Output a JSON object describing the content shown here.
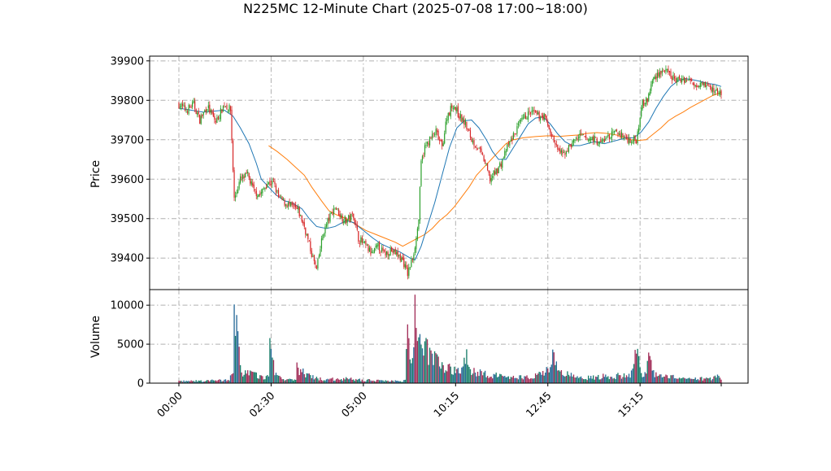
{
  "chart_data": {
    "type": "candlestick",
    "title": "N225MC 12-Minute Chart (2025-07-08 17:00~18:00)",
    "price_panel": {
      "ylabel": "Price",
      "yticks": [
        39400,
        39500,
        39600,
        39700,
        39800,
        39900
      ],
      "ylim": [
        39320,
        39912
      ],
      "grid": true
    },
    "volume_panel": {
      "ylabel": "Volume",
      "yticks": [
        0,
        5000,
        10000
      ],
      "ylim": [
        0,
        12000
      ],
      "grid": true
    },
    "xticks": [
      "00:00",
      "02:30",
      "05:00",
      "10:15",
      "12:45",
      "15:15"
    ],
    "colors": {
      "up": "#2ca02c",
      "down": "#d62728",
      "ma_short": "#1f77b4",
      "ma_long": "#ff7f0e",
      "vol_up": "#1a7f6b",
      "vol_down": "#a3305a",
      "vol_neutral": "#2b6d9a"
    },
    "close_path": [
      [
        0,
        39790
      ],
      [
        6,
        39775
      ],
      [
        12,
        39790
      ],
      [
        17,
        39750
      ],
      [
        23,
        39785
      ],
      [
        30,
        39745
      ],
      [
        37,
        39790
      ],
      [
        42,
        39775
      ],
      [
        45,
        39550
      ],
      [
        50,
        39600
      ],
      [
        56,
        39610
      ],
      [
        61,
        39570
      ],
      [
        66,
        39560
      ],
      [
        72,
        39590
      ],
      [
        77,
        39590
      ],
      [
        81,
        39555
      ],
      [
        86,
        39540
      ],
      [
        92,
        39530
      ],
      [
        97,
        39520
      ],
      [
        102,
        39480
      ],
      [
        108,
        39410
      ],
      [
        112,
        39370
      ],
      [
        117,
        39460
      ],
      [
        122,
        39500
      ],
      [
        127,
        39530
      ],
      [
        132,
        39505
      ],
      [
        136,
        39495
      ],
      [
        142,
        39510
      ],
      [
        146,
        39450
      ],
      [
        152,
        39430
      ],
      [
        157,
        39410
      ],
      [
        162,
        39430
      ],
      [
        167,
        39410
      ],
      [
        172,
        39420
      ],
      [
        177,
        39410
      ],
      [
        182,
        39395
      ],
      [
        186,
        39360
      ],
      [
        190,
        39400
      ],
      [
        193,
        39450
      ],
      [
        195,
        39500
      ],
      [
        197,
        39640
      ],
      [
        200,
        39680
      ],
      [
        204,
        39700
      ],
      [
        209,
        39720
      ],
      [
        214,
        39680
      ],
      [
        218,
        39760
      ],
      [
        223,
        39790
      ],
      [
        228,
        39760
      ],
      [
        233,
        39740
      ],
      [
        238,
        39700
      ],
      [
        243,
        39680
      ],
      [
        248,
        39650
      ],
      [
        253,
        39600
      ],
      [
        258,
        39620
      ],
      [
        262,
        39640
      ],
      [
        267,
        39680
      ],
      [
        272,
        39710
      ],
      [
        277,
        39740
      ],
      [
        282,
        39760
      ],
      [
        287,
        39770
      ],
      [
        292,
        39760
      ],
      [
        297,
        39760
      ],
      [
        302,
        39720
      ],
      [
        307,
        39680
      ],
      [
        312,
        39660
      ],
      [
        317,
        39680
      ],
      [
        322,
        39700
      ],
      [
        327,
        39710
      ],
      [
        332,
        39700
      ],
      [
        337,
        39705
      ],
      [
        342,
        39690
      ],
      [
        346,
        39700
      ],
      [
        351,
        39710
      ],
      [
        356,
        39720
      ],
      [
        361,
        39710
      ],
      [
        366,
        39700
      ],
      [
        372,
        39700
      ],
      [
        374,
        39740
      ],
      [
        376,
        39790
      ],
      [
        381,
        39800
      ],
      [
        385,
        39850
      ],
      [
        390,
        39870
      ],
      [
        395,
        39875
      ],
      [
        400,
        39860
      ],
      [
        405,
        39850
      ],
      [
        410,
        39855
      ],
      [
        415,
        39850
      ],
      [
        420,
        39840
      ],
      [
        425,
        39850
      ],
      [
        430,
        39835
      ],
      [
        435,
        39825
      ],
      [
        441,
        39820
      ]
    ],
    "ma_short_path": [
      [
        0,
        39780
      ],
      [
        20,
        39770
      ],
      [
        37,
        39775
      ],
      [
        44,
        39760
      ],
      [
        50,
        39730
      ],
      [
        57,
        39690
      ],
      [
        63,
        39640
      ],
      [
        67,
        39600
      ],
      [
        73,
        39580
      ],
      [
        79,
        39560
      ],
      [
        86,
        39545
      ],
      [
        92,
        39540
      ],
      [
        100,
        39525
      ],
      [
        106,
        39500
      ],
      [
        112,
        39480
      ],
      [
        120,
        39475
      ],
      [
        127,
        39480
      ],
      [
        136,
        39495
      ],
      [
        142,
        39490
      ],
      [
        150,
        39470
      ],
      [
        158,
        39450
      ],
      [
        165,
        39435
      ],
      [
        172,
        39425
      ],
      [
        180,
        39415
      ],
      [
        188,
        39400
      ],
      [
        192,
        39395
      ],
      [
        197,
        39430
      ],
      [
        202,
        39480
      ],
      [
        208,
        39540
      ],
      [
        214,
        39610
      ],
      [
        220,
        39680
      ],
      [
        226,
        39730
      ],
      [
        232,
        39748
      ],
      [
        238,
        39750
      ],
      [
        244,
        39730
      ],
      [
        250,
        39700
      ],
      [
        255,
        39670
      ],
      [
        260,
        39650
      ],
      [
        266,
        39650
      ],
      [
        272,
        39680
      ],
      [
        278,
        39710
      ],
      [
        284,
        39740
      ],
      [
        290,
        39755
      ],
      [
        296,
        39758
      ],
      [
        302,
        39740
      ],
      [
        308,
        39715
      ],
      [
        314,
        39695
      ],
      [
        320,
        39685
      ],
      [
        326,
        39685
      ],
      [
        332,
        39690
      ],
      [
        338,
        39695
      ],
      [
        346,
        39690
      ],
      [
        352,
        39695
      ],
      [
        358,
        39700
      ],
      [
        364,
        39705
      ],
      [
        370,
        39705
      ],
      [
        376,
        39720
      ],
      [
        382,
        39745
      ],
      [
        388,
        39780
      ],
      [
        394,
        39810
      ],
      [
        400,
        39835
      ],
      [
        406,
        39850
      ],
      [
        412,
        39855
      ],
      [
        418,
        39852
      ],
      [
        424,
        39848
      ],
      [
        430,
        39843
      ],
      [
        436,
        39840
      ],
      [
        441,
        39835
      ]
    ],
    "ma_long_path": [
      [
        73,
        39685
      ],
      [
        80,
        39670
      ],
      [
        88,
        39650
      ],
      [
        95,
        39630
      ],
      [
        102,
        39610
      ],
      [
        108,
        39580
      ],
      [
        116,
        39545
      ],
      [
        122,
        39520
      ],
      [
        128,
        39510
      ],
      [
        136,
        39500
      ],
      [
        144,
        39485
      ],
      [
        152,
        39470
      ],
      [
        160,
        39460
      ],
      [
        168,
        39450
      ],
      [
        176,
        39440
      ],
      [
        182,
        39430
      ],
      [
        188,
        39440
      ],
      [
        194,
        39450
      ],
      [
        200,
        39460
      ],
      [
        206,
        39475
      ],
      [
        212,
        39495
      ],
      [
        218,
        39510
      ],
      [
        224,
        39530
      ],
      [
        230,
        39555
      ],
      [
        236,
        39580
      ],
      [
        242,
        39610
      ],
      [
        248,
        39630
      ],
      [
        254,
        39650
      ],
      [
        260,
        39670
      ],
      [
        266,
        39690
      ],
      [
        272,
        39700
      ],
      [
        280,
        39705
      ],
      [
        290,
        39708
      ],
      [
        300,
        39710
      ],
      [
        308,
        39708
      ],
      [
        316,
        39710
      ],
      [
        324,
        39712
      ],
      [
        332,
        39716
      ],
      [
        340,
        39718
      ],
      [
        348,
        39716
      ],
      [
        356,
        39712
      ],
      [
        364,
        39702
      ],
      [
        372,
        39698
      ],
      [
        380,
        39700
      ],
      [
        386,
        39715
      ],
      [
        392,
        39730
      ],
      [
        398,
        39748
      ],
      [
        404,
        39760
      ],
      [
        410,
        39770
      ],
      [
        416,
        39782
      ],
      [
        422,
        39792
      ],
      [
        428,
        39802
      ],
      [
        434,
        39812
      ],
      [
        441,
        39820
      ]
    ],
    "volume_path": [
      [
        0,
        250
      ],
      [
        20,
        280
      ],
      [
        40,
        400
      ],
      [
        44,
        1200
      ],
      [
        45,
        7700
      ],
      [
        47,
        6200
      ],
      [
        49,
        3500
      ],
      [
        51,
        1600
      ],
      [
        56,
        1400
      ],
      [
        62,
        1000
      ],
      [
        68,
        800
      ],
      [
        73,
        700
      ],
      [
        74,
        6000
      ],
      [
        76,
        2800
      ],
      [
        79,
        1200
      ],
      [
        84,
        600
      ],
      [
        90,
        400
      ],
      [
        95,
        400
      ],
      [
        96,
        2000
      ],
      [
        100,
        1500
      ],
      [
        105,
        900
      ],
      [
        110,
        700
      ],
      [
        116,
        500
      ],
      [
        122,
        450
      ],
      [
        130,
        600
      ],
      [
        140,
        500
      ],
      [
        150,
        400
      ],
      [
        160,
        350
      ],
      [
        170,
        300
      ],
      [
        178,
        250
      ],
      [
        184,
        300
      ],
      [
        186,
        8500
      ],
      [
        188,
        3500
      ],
      [
        190,
        3200
      ],
      [
        192,
        11000
      ],
      [
        194,
        3800
      ],
      [
        196,
        5700
      ],
      [
        198,
        4200
      ],
      [
        202,
        4300
      ],
      [
        206,
        3800
      ],
      [
        210,
        3100
      ],
      [
        214,
        2700
      ],
      [
        220,
        1800
      ],
      [
        226,
        1600
      ],
      [
        230,
        1400
      ],
      [
        234,
        3700
      ],
      [
        238,
        1800
      ],
      [
        242,
        1400
      ],
      [
        246,
        1200
      ],
      [
        250,
        1100
      ],
      [
        256,
        1000
      ],
      [
        262,
        900
      ],
      [
        268,
        800
      ],
      [
        274,
        700
      ],
      [
        280,
        800
      ],
      [
        286,
        900
      ],
      [
        292,
        1200
      ],
      [
        298,
        1200
      ],
      [
        304,
        3300
      ],
      [
        308,
        1500
      ],
      [
        314,
        1200
      ],
      [
        320,
        900
      ],
      [
        326,
        800
      ],
      [
        332,
        700
      ],
      [
        338,
        700
      ],
      [
        344,
        900
      ],
      [
        350,
        800
      ],
      [
        356,
        900
      ],
      [
        362,
        1000
      ],
      [
        367,
        1200
      ],
      [
        370,
        2300
      ],
      [
        372,
        5000
      ],
      [
        375,
        1500
      ],
      [
        380,
        1200
      ],
      [
        382,
        3100
      ],
      [
        386,
        1200
      ],
      [
        392,
        900
      ],
      [
        398,
        800
      ],
      [
        404,
        700
      ],
      [
        410,
        600
      ],
      [
        420,
        600
      ],
      [
        430,
        500
      ],
      [
        436,
        700
      ],
      [
        438,
        850
      ],
      [
        441,
        350
      ]
    ],
    "candle_count": 442
  }
}
